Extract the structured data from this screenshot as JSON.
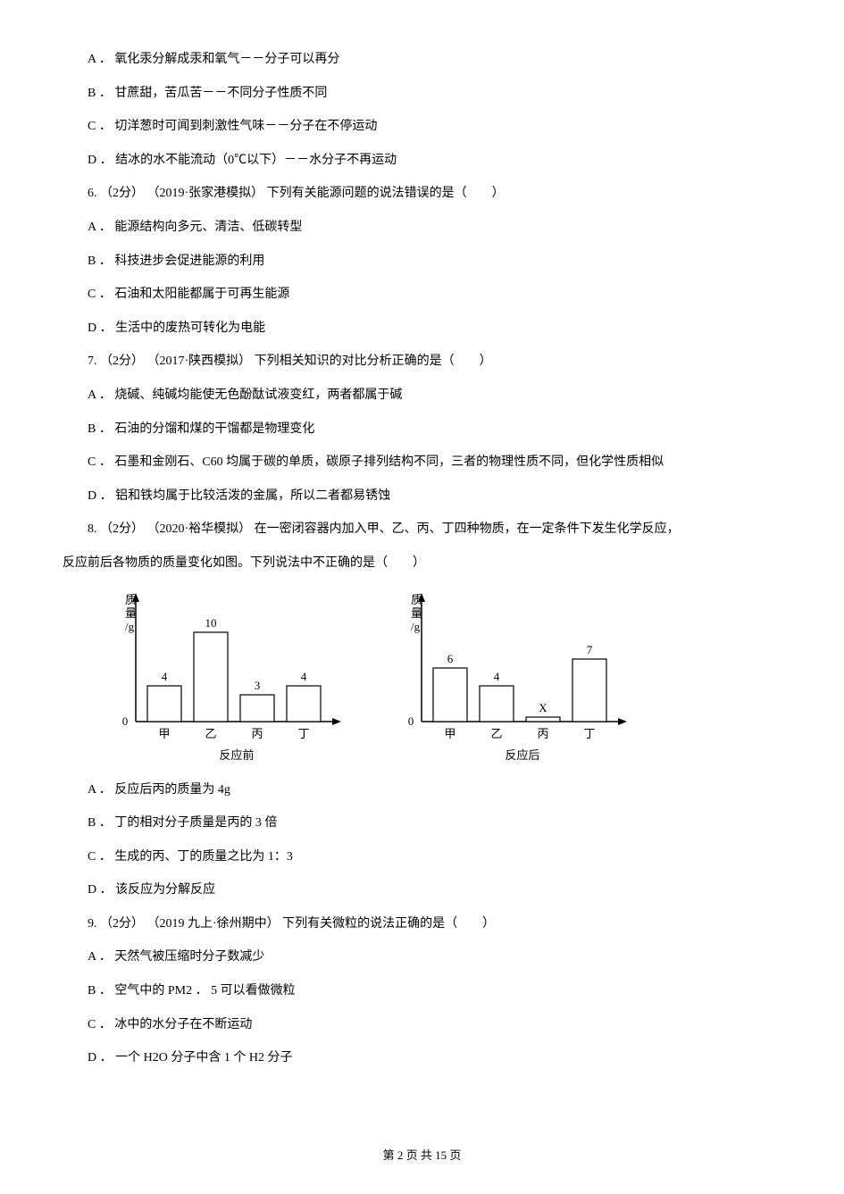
{
  "q5": {
    "opts": {
      "A": "A ． 氧化汞分解成汞和氧气－－分子可以再分",
      "B": "B ． 甘蔗甜，苦瓜苦－－不同分子性质不同",
      "C": "C ． 切洋葱时可闻到刺激性气味－－分子在不停运动",
      "D": "D ． 结冰的水不能流动（0℃以下）－－水分子不再运动"
    }
  },
  "q6": {
    "stem": "6. （2分） （2019·张家港模拟） 下列有关能源问题的说法错误的是（　　）",
    "opts": {
      "A": "A ． 能源结构向多元、清洁、低碳转型",
      "B": "B ． 科技进步会促进能源的利用",
      "C": "C ． 石油和太阳能都属于可再生能源",
      "D": "D ． 生活中的废热可转化为电能"
    }
  },
  "q7": {
    "stem": "7. （2分） （2017·陕西模拟） 下列相关知识的对比分析正确的是（　　）",
    "opts": {
      "A": "A ． 烧碱、纯碱均能使无色酚酞试液变红，两者都属于碱",
      "B": "B ． 石油的分馏和煤的干馏都是物理变化",
      "C": "C ． 石墨和金刚石、C60 均属于碳的单质，碳原子排列结构不同，三者的物理性质不同，但化学性质相似",
      "D": "D ． 铝和铁均属于比较活泼的金属，所以二者都易锈蚀"
    }
  },
  "q8": {
    "stem1": "8. （2分） （2020·裕华模拟） 在一密闭容器内加入甲、乙、丙、丁四种物质，在一定条件下发生化学反应，",
    "stem2": "反应前后各物质的质量变化如图。下列说法中不正确的是（　　）",
    "opts": {
      "A": "A ． 反应后丙的质量为 4g",
      "B": "B ． 丁的相对分子质量是丙的 3 倍",
      "C": "C ． 生成的丙、丁的质量之比为 1：3",
      "D": "D ． 该反应为分解反应"
    }
  },
  "q9": {
    "stem": "9. （2分） （2019 九上·徐州期中） 下列有关微粒的说法正确的是（　　）",
    "opts": {
      "A": "A ． 天然气被压缩时分子数减少",
      "B": "B ． 空气中的 PM2 ． 5 可以看做微粒",
      "C": "C ． 冰中的水分子在不断运动",
      "D": "D ． 一个 H2O 分子中含 1 个 H2 分子"
    }
  },
  "chart_before": {
    "ylabel_l1": "质",
    "ylabel_l2": "量",
    "ylabel_l3": "/g",
    "categories": [
      "甲",
      "乙",
      "丙",
      "丁"
    ],
    "values": [
      4,
      10,
      3,
      4
    ],
    "labels": [
      "4",
      "10",
      "3",
      "4"
    ],
    "zero": "0",
    "caption": "反应前",
    "bar_fill": "#ffffff",
    "bar_stroke": "#000000",
    "axis_stroke": "#000000",
    "ymax": 10
  },
  "chart_after": {
    "ylabel_l1": "质",
    "ylabel_l2": "量",
    "ylabel_l3": "/g",
    "categories": [
      "甲",
      "乙",
      "丙",
      "丁"
    ],
    "values": [
      6,
      4,
      0.5,
      7
    ],
    "labels": [
      "6",
      "4",
      "X",
      "7"
    ],
    "zero": "0",
    "caption": "反应后",
    "bar_fill": "#ffffff",
    "bar_stroke": "#000000",
    "axis_stroke": "#000000",
    "ymax": 10
  },
  "footer": {
    "prefix": "第 ",
    "page": "2",
    "mid": " 页 共 ",
    "total": "15",
    "suffix": " 页"
  }
}
